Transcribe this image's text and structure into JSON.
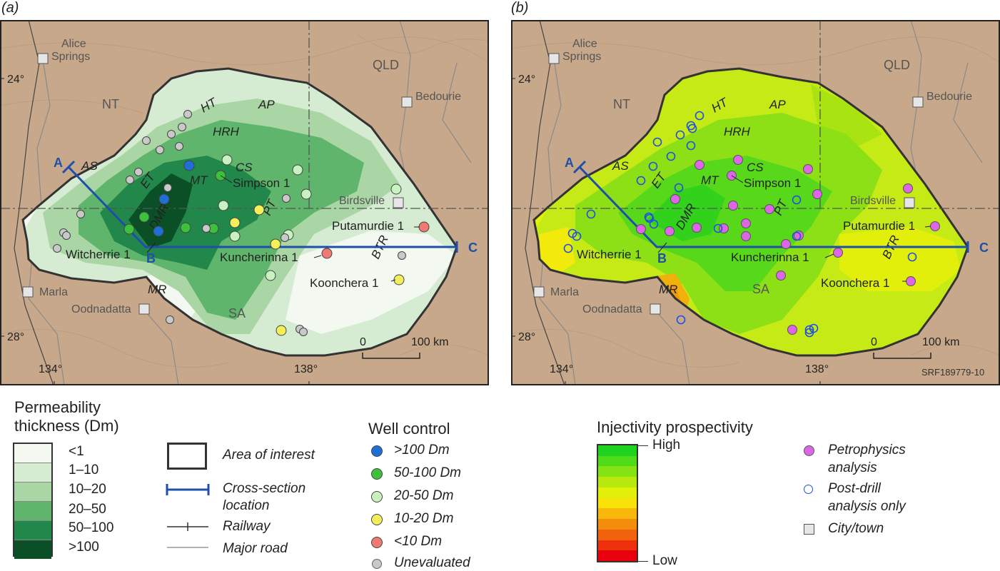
{
  "panels": [
    {
      "label": "(a)"
    },
    {
      "label": "(b)"
    }
  ],
  "map": {
    "lat_labels": [
      "24°",
      "28°"
    ],
    "lon_labels": [
      "134°",
      "138°"
    ],
    "states": [
      "NT",
      "QLD",
      "SA"
    ],
    "towns": [
      "Alice\nSprings",
      "Bedourie",
      "Birdsville",
      "Marla",
      "Oodnadatta"
    ],
    "alice_line1": "Alice",
    "alice_line2": "Springs",
    "wells": [
      "Simpson 1",
      "Witcherrie 1",
      "Putamurdie 1",
      "Kuncherinna 1",
      "Koonchera 1"
    ],
    "features": [
      "HT",
      "AP",
      "HRH",
      "AS",
      "CS",
      "ET",
      "MT",
      "DMR",
      "PT",
      "BTR",
      "MR"
    ],
    "cross_section_points": [
      "A",
      "B",
      "C"
    ],
    "scale_bar": {
      "start": "0",
      "end": "100 km"
    },
    "figure_code": "SRF189779-10"
  },
  "legend_perm": {
    "title_line1": "Permeability",
    "title_line2": "thickness (Dm)",
    "classes": [
      "<1",
      "1–10",
      "10–20",
      "20–50",
      "50–100",
      ">100"
    ],
    "colors": [
      "#f3f8f1",
      "#d6ecd2",
      "#a9d6a4",
      "#5fb56b",
      "#22874a",
      "#0b4f27"
    ]
  },
  "legend_symbols": {
    "area": "Area of interest",
    "xs_line1": "Cross-section",
    "xs_line2": "location",
    "railway": "Railway",
    "road": "Major road"
  },
  "legend_wells": {
    "title": "Well control",
    "items": [
      {
        "label": ">100 Dm",
        "color": "#1f6fd6"
      },
      {
        "label": "50-100 Dm",
        "color": "#3cc23a"
      },
      {
        "label": "20-50 Dm",
        "color": "#c8f2c0"
      },
      {
        "label": "10-20 Dm",
        "color": "#f5ef5a"
      },
      {
        "label": "<10 Dm",
        "color": "#ee7a72"
      },
      {
        "label": "Unevaluated",
        "color": "#c9c9c9"
      }
    ]
  },
  "legend_injectivity": {
    "title": "Injectivity prospectivity",
    "high": "High",
    "low": "Low",
    "colors": [
      "#1fd21f",
      "#4fdb18",
      "#86e313",
      "#b7e90f",
      "#e2ef0b",
      "#f8e20a",
      "#f7b70b",
      "#f58d0c",
      "#f2620c",
      "#ee300c",
      "#e8000c"
    ]
  },
  "legend_analysis": {
    "petro_line1": "Petrophysics",
    "petro_line2": "analysis",
    "post_line1": "Post-drill",
    "post_line2": "analysis only",
    "city": "City/town",
    "petro_color": "#dd66e6",
    "post_color": "#1f50e0"
  }
}
